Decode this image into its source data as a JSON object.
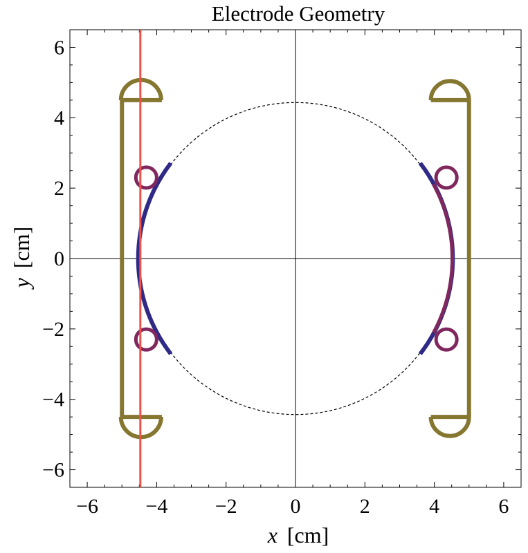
{
  "chart_data": {
    "type": "line",
    "title": "Electrode Geometry",
    "xlabel_var": "x",
    "xlabel_unit": "[cm]",
    "ylabel_var": "y",
    "ylabel_unit": "[cm]",
    "xlim": [
      -6.5,
      6.5
    ],
    "ylim": [
      -6.5,
      6.5
    ],
    "xticks": [
      -6,
      -4,
      -2,
      0,
      2,
      4,
      6
    ],
    "yticks": [
      -6,
      -4,
      -2,
      0,
      2,
      4,
      6
    ],
    "xtick_labels": [
      "−6",
      "−4",
      "−2",
      "0",
      "2",
      "4",
      "6"
    ],
    "ytick_labels": [
      "−6",
      "−4",
      "−2",
      "0",
      "2",
      "4",
      "6"
    ],
    "minor_tick_step": 0.5,
    "grid": false,
    "origin_axes": true,
    "colors": {
      "reference_circle": "#000000",
      "electrode_arc": "#2e2a86",
      "rod": "#80285e",
      "frame": "#857630",
      "cursor_line": "#f0504a"
    },
    "reference_circle": {
      "center": [
        0,
        0
      ],
      "radius": 4.5,
      "style": "dashed"
    },
    "electrode_arcs": [
      {
        "center": [
          0,
          0
        ],
        "radius": 4.5,
        "angle_deg": [
          143,
          217
        ]
      },
      {
        "center": [
          0,
          0
        ],
        "radius": 4.5,
        "angle_deg": [
          -37,
          37
        ]
      }
    ],
    "rod_arcs": [
      {
        "center": [
          0,
          0
        ],
        "radius": 4.5,
        "angle_deg": [
          -28,
          28
        ]
      }
    ],
    "rods": [
      {
        "center": [
          -4.3,
          2.3
        ],
        "radius": 0.3
      },
      {
        "center": [
          -4.3,
          -2.3
        ],
        "radius": 0.3
      },
      {
        "center": [
          4.35,
          2.3
        ],
        "radius": 0.3
      },
      {
        "center": [
          4.35,
          -2.3
        ],
        "radius": 0.3
      }
    ],
    "frames": [
      {
        "side": "left",
        "x": -5.0,
        "y_range": [
          -4.5,
          4.5
        ],
        "bar_to": -3.85,
        "cap_center_x": -4.45,
        "cap_radius": 0.58
      },
      {
        "side": "right",
        "x": 5.0,
        "y_range": [
          -4.5,
          4.5
        ],
        "bar_to": 3.9,
        "cap_center_x": 4.45,
        "cap_radius": 0.55
      }
    ],
    "cursor_line": {
      "x": -4.47
    }
  }
}
